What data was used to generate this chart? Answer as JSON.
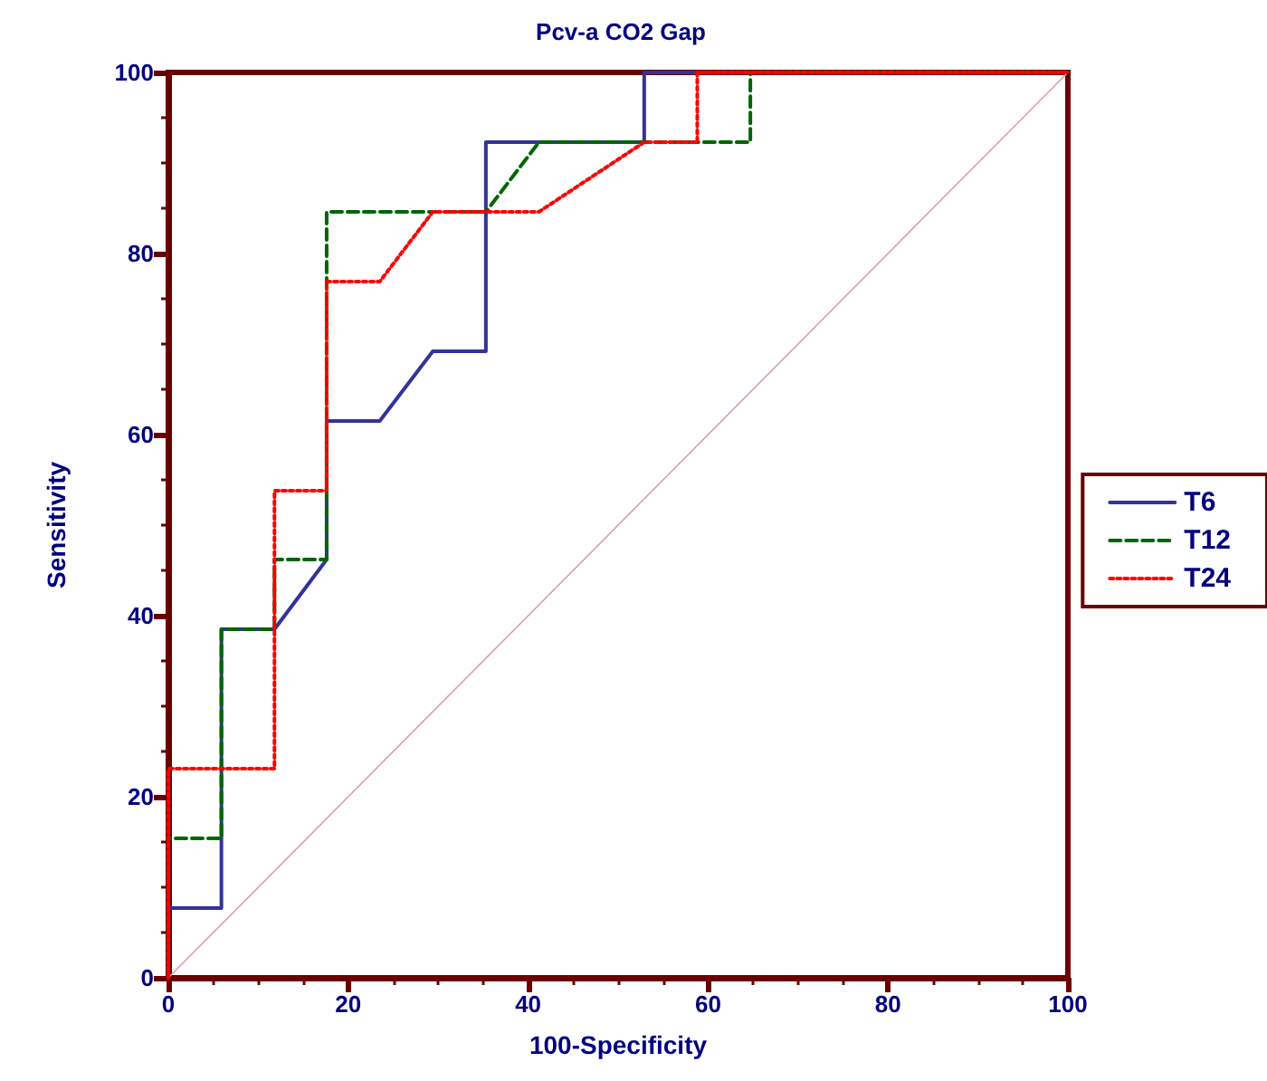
{
  "chart_data": {
    "type": "line",
    "title": "Pcv-a CO2 Gap",
    "xlabel": "100-Specificity",
    "ylabel": "Sensitivity",
    "xlim": [
      0,
      100
    ],
    "ylim": [
      0,
      100
    ],
    "xticks": [
      0,
      20,
      40,
      60,
      80,
      100
    ],
    "yticks": [
      0,
      20,
      40,
      60,
      80,
      100
    ],
    "grid": false,
    "legend": "right",
    "marker": "none",
    "series": [
      {
        "name": "T6",
        "color": "#333399",
        "line_style": "solid",
        "x": [
          0,
          0,
          5.9,
          5.9,
          11.8,
          17.6,
          17.6,
          23.5,
          29.4,
          35.3,
          35.3,
          52.9,
          52.9,
          100
        ],
        "values": [
          0,
          7.7,
          7.7,
          38.5,
          38.5,
          46.2,
          61.5,
          61.5,
          69.2,
          69.2,
          92.3,
          92.3,
          100,
          100
        ]
      },
      {
        "name": "T12",
        "color": "#006600",
        "line_style": "dashed",
        "x": [
          0,
          0,
          5.9,
          5.9,
          11.8,
          11.8,
          17.6,
          17.6,
          35.3,
          41.2,
          64.7,
          64.7,
          100
        ],
        "values": [
          0,
          15.4,
          15.4,
          38.5,
          38.5,
          46.2,
          46.2,
          84.6,
          84.6,
          92.3,
          92.3,
          100,
          100
        ]
      },
      {
        "name": "T24",
        "color": "#ff0000",
        "line_style": "dotted",
        "x": [
          0,
          0,
          11.8,
          11.8,
          17.6,
          17.6,
          23.5,
          29.4,
          41.2,
          52.9,
          58.8,
          58.8,
          100
        ],
        "values": [
          0,
          23.1,
          23.1,
          53.8,
          53.8,
          76.9,
          76.9,
          84.6,
          84.6,
          92.3,
          92.3,
          100,
          100
        ]
      },
      {
        "color": "#d9a0a0",
        "line_style": "solid",
        "x": [
          0,
          100
        ],
        "values": [
          0,
          100
        ]
      }
    ]
  }
}
